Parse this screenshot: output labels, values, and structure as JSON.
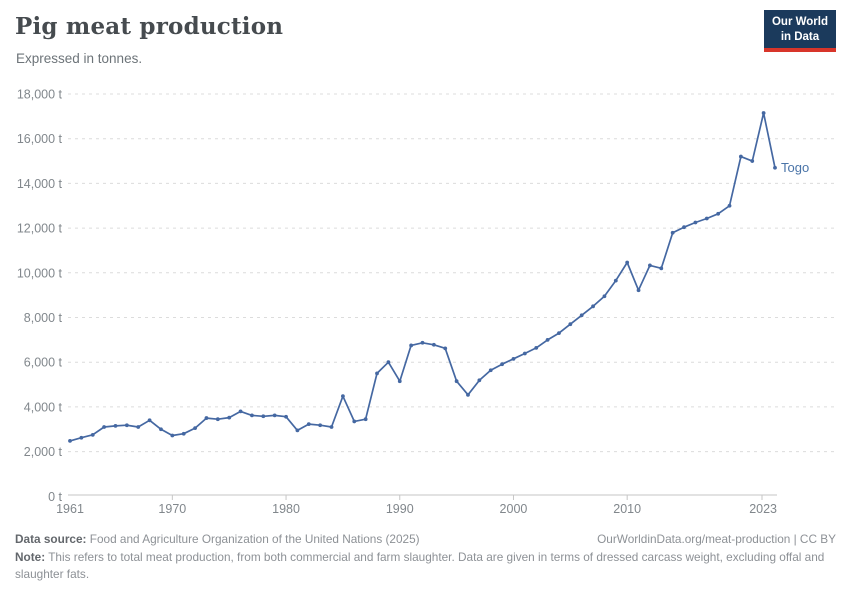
{
  "header": {
    "title": "Pig meat production",
    "subtitle": "Expressed in tonnes.",
    "logo_line1": "Our World",
    "logo_line2": "in Data"
  },
  "chart_data": {
    "type": "line",
    "title": "Pig meat production",
    "unit": "t",
    "xlabel": "",
    "ylabel": "",
    "xlim": [
      1961,
      2023
    ],
    "ylim": [
      0,
      18000
    ],
    "x_ticks": [
      1961,
      1970,
      1980,
      1990,
      2000,
      2010,
      2023
    ],
    "y_ticks": [
      0,
      2000,
      4000,
      6000,
      8000,
      10000,
      12000,
      14000,
      16000,
      18000
    ],
    "grid": "horizontal-dashed",
    "legend_position": "end-of-line-label",
    "series": [
      {
        "name": "Togo",
        "color": "#4568a2",
        "x": [
          1961,
          1962,
          1963,
          1964,
          1965,
          1966,
          1967,
          1968,
          1969,
          1970,
          1971,
          1972,
          1973,
          1974,
          1975,
          1976,
          1977,
          1978,
          1979,
          1980,
          1981,
          1982,
          1983,
          1984,
          1985,
          1986,
          1987,
          1988,
          1989,
          1990,
          1991,
          1992,
          1993,
          1994,
          1995,
          1996,
          1997,
          1998,
          1999,
          2000,
          2001,
          2002,
          2003,
          2004,
          2005,
          2006,
          2007,
          2008,
          2009,
          2010,
          2011,
          2012,
          2013,
          2014,
          2015,
          2016,
          2017,
          2018,
          2019,
          2020,
          2021,
          2022,
          2023
        ],
        "values": [
          2480,
          2620,
          2750,
          3100,
          3150,
          3180,
          3100,
          3400,
          3000,
          2720,
          2800,
          3050,
          3500,
          3450,
          3520,
          3800,
          3620,
          3580,
          3620,
          3560,
          2950,
          3230,
          3180,
          3100,
          4480,
          3350,
          3450,
          5500,
          6000,
          5150,
          6750,
          6870,
          6780,
          6620,
          5150,
          4540,
          5190,
          5640,
          5910,
          6150,
          6390,
          6640,
          7000,
          7300,
          7700,
          8100,
          8500,
          8950,
          9650,
          10460,
          9220,
          10330,
          10200,
          11790,
          12040,
          12250,
          12430,
          12640,
          13000,
          15200,
          15000,
          17150,
          14700
        ]
      }
    ]
  },
  "footer": {
    "source_label": "Data source:",
    "source_text": " Food and Agriculture Organization of the United Nations (2025)",
    "link_text": "OurWorldinData.org/meat-production | CC BY",
    "note_label": "Note:",
    "note_text": " This refers to total meat production, from both commercial and farm slaughter. Data are given in terms of dressed carcass weight, excluding offal and slaughter fats."
  },
  "colors": {
    "line": "#4568a2",
    "entity_label": "#4a74a8",
    "grid": "#dcdcdc",
    "axis": "#c6c6c6",
    "tick_text": "#81878c",
    "logo_bg": "#1b3a5c",
    "logo_red": "#d8352a"
  }
}
